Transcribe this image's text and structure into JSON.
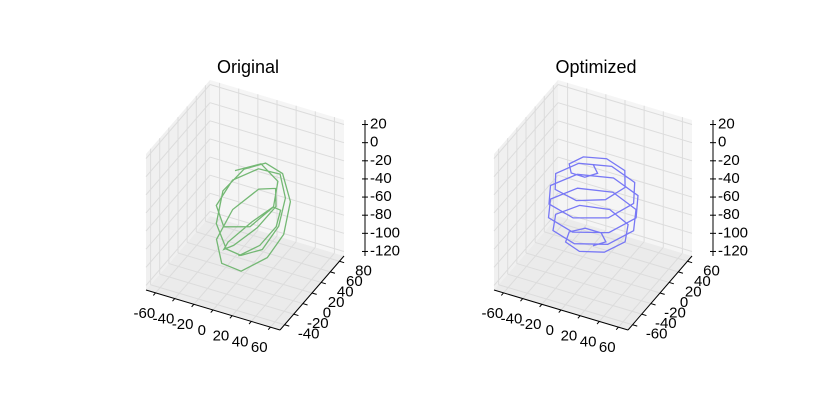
{
  "chart_data": [
    {
      "type": "line3d",
      "title": "Original",
      "xlim": [
        -70,
        70
      ],
      "ylim": [
        -50,
        90
      ],
      "zlim": [
        -125,
        25
      ],
      "xticks": [
        -60,
        -40,
        -20,
        0,
        20,
        40,
        60
      ],
      "yticks": [
        -40,
        -20,
        0,
        20,
        40,
        60,
        80
      ],
      "zticks": [
        20,
        0,
        -20,
        -40,
        -60,
        -80,
        -100,
        -120
      ],
      "grid": true,
      "series": [
        {
          "color": "#74b874",
          "x": [
            -20,
            0,
            20,
            25,
            10,
            -15,
            -30,
            -25,
            -5,
            20,
            35,
            40,
            30,
            10,
            -10,
            -30,
            -35,
            -20,
            0,
            25,
            45,
            50,
            40,
            15,
            -10,
            -25,
            -20,
            0,
            20,
            30,
            20,
            0,
            -15,
            -20,
            -5,
            15,
            30,
            35,
            25,
            5
          ],
          "y": [
            40,
            55,
            50,
            30,
            10,
            5,
            20,
            45,
            60,
            55,
            35,
            10,
            -5,
            -10,
            0,
            20,
            45,
            60,
            65,
            50,
            25,
            0,
            -15,
            -20,
            -10,
            10,
            35,
            50,
            45,
            25,
            5,
            -5,
            5,
            25,
            45,
            50,
            35,
            15,
            0,
            -5
          ],
          "z": [
            -30,
            -25,
            -35,
            -50,
            -65,
            -70,
            -60,
            -45,
            -35,
            -30,
            -40,
            -55,
            -75,
            -85,
            -90,
            -80,
            -60,
            -40,
            -30,
            -25,
            -35,
            -55,
            -75,
            -95,
            -100,
            -90,
            -70,
            -50,
            -40,
            -45,
            -60,
            -80,
            -95,
            -100,
            -85,
            -65,
            -55,
            -60,
            -75,
            -90
          ]
        }
      ]
    },
    {
      "type": "line3d",
      "title": "Optimized",
      "xlim": [
        -70,
        70
      ],
      "ylim": [
        -70,
        70
      ],
      "zlim": [
        -125,
        25
      ],
      "xticks": [
        -60,
        -40,
        -20,
        0,
        20,
        40,
        60
      ],
      "yticks": [
        -60,
        -40,
        -20,
        0,
        20,
        40,
        60
      ],
      "zticks": [
        20,
        0,
        -20,
        -40,
        -60,
        -80,
        -100,
        -120
      ],
      "grid": true,
      "series": [
        {
          "color": "#7878f5",
          "x": [
            0,
            9.1,
            0,
            -15.4,
            -24.9,
            -19.4,
            0,
            22.5,
            33.5,
            24.8,
            0,
            -26.7,
            -39,
            -28.3,
            0,
            29.5,
            42.4,
            30.4,
            0,
            -31.1,
            -44.4,
            -31.5,
            0,
            31.8,
            45,
            31.8,
            0,
            -31.5,
            -44.4,
            -31.1,
            0,
            30.4,
            42.4,
            29.5,
            0,
            -28.3,
            -39,
            -26.7,
            0,
            24.8,
            33.5,
            22.5,
            0,
            -19.4,
            -24.9,
            -15.4,
            0,
            9.1,
            0
          ],
          "y": [
            0,
            9.1,
            18,
            15.4,
            0,
            -19.4,
            -29.8,
            -22.5,
            0,
            24.8,
            36.6,
            26.7,
            0,
            -28.3,
            -40.9,
            -29.5,
            0,
            30.4,
            43.6,
            31.1,
            0,
            -31.5,
            -44.8,
            -31.8,
            0,
            31.8,
            44.8,
            31.5,
            0,
            -31.1,
            -43.6,
            -30.4,
            0,
            29.5,
            40.9,
            28.3,
            0,
            -26.7,
            -36.6,
            -24.8,
            0,
            22.5,
            29.8,
            19.4,
            0,
            -15.4,
            -18,
            -9.1,
            0
          ],
          "z": [
            -95,
            -93.1,
            -91.3,
            -89.4,
            -87.5,
            -85.6,
            -83.8,
            -81.9,
            -80,
            -78.1,
            -76.3,
            -74.4,
            -72.5,
            -70.6,
            -68.8,
            -66.9,
            -65,
            -63.1,
            -61.3,
            -59.4,
            -57.5,
            -55.6,
            -53.8,
            -51.9,
            -50,
            -48.1,
            -46.3,
            -44.4,
            -42.5,
            -40.6,
            -38.8,
            -36.9,
            -35,
            -33.1,
            -31.3,
            -29.4,
            -27.5,
            -25.6,
            -23.8,
            -21.9,
            -20,
            -18.1,
            -16.3,
            -14.4,
            -12.5,
            -10.6,
            -8.8,
            -6.9,
            -5
          ]
        }
      ]
    }
  ]
}
